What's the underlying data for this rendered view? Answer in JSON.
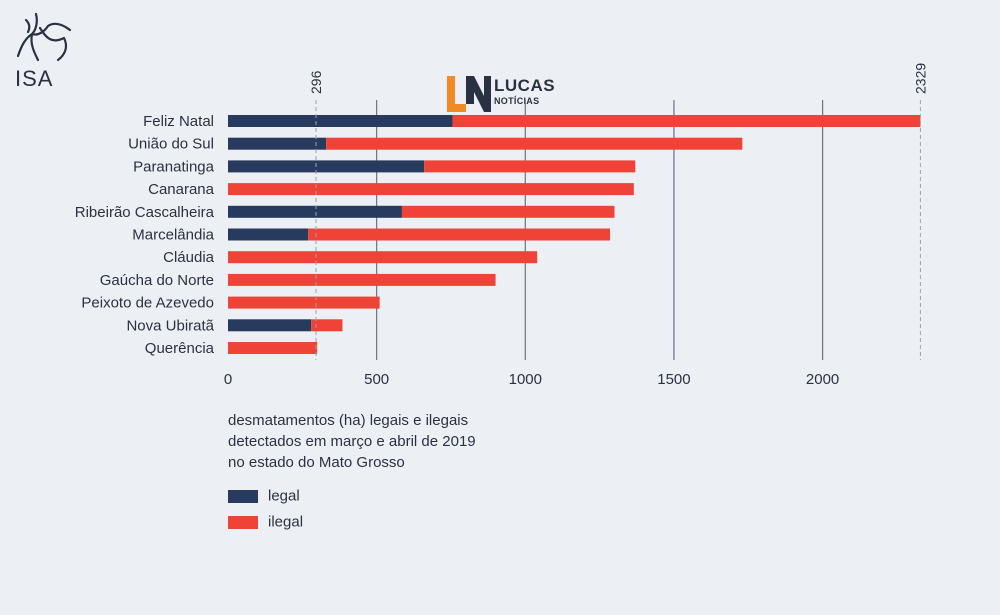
{
  "branding": {
    "isa_text": "ISA",
    "lucas_word": "LUCAS",
    "lucas_sub": "NOTÍCIAS",
    "lucas_mark": "LN"
  },
  "colors": {
    "legal": "#283b5e",
    "ilegal": "#f04337",
    "gridline": "#6b7380",
    "text": "#2a3142",
    "background": "#ecf0f5"
  },
  "chart_data": {
    "type": "bar",
    "orientation": "horizontal",
    "stacked": true,
    "categories": [
      "Feliz Natal",
      "União do Sul",
      "Paranatinga",
      "Canarana",
      "Ribeirão Cascalheira",
      "Marcelândia",
      "Cláudia",
      "Gaúcha do Norte",
      "Peixoto de Azevedo",
      "Nova Ubiratã",
      "Querência"
    ],
    "series": [
      {
        "name": "legal",
        "values": [
          755,
          330,
          660,
          0,
          585,
          270,
          0,
          0,
          0,
          280,
          0
        ]
      },
      {
        "name": "ilegal",
        "values": [
          1574,
          1400,
          710,
          1365,
          715,
          1015,
          1040,
          900,
          510,
          105,
          300
        ]
      }
    ],
    "xlim": [
      0,
      2329
    ],
    "xticks": [
      0,
      500,
      1000,
      1500,
      2000
    ],
    "top_markers": [
      296,
      2329
    ],
    "caption_lines": [
      "desmatamentos (ha) legais e ilegais",
      "detectados em março e abril de 2019",
      "no estado do Mato Grosso"
    ],
    "legend": [
      "legal",
      "ilegal"
    ],
    "grid": "vertical"
  }
}
